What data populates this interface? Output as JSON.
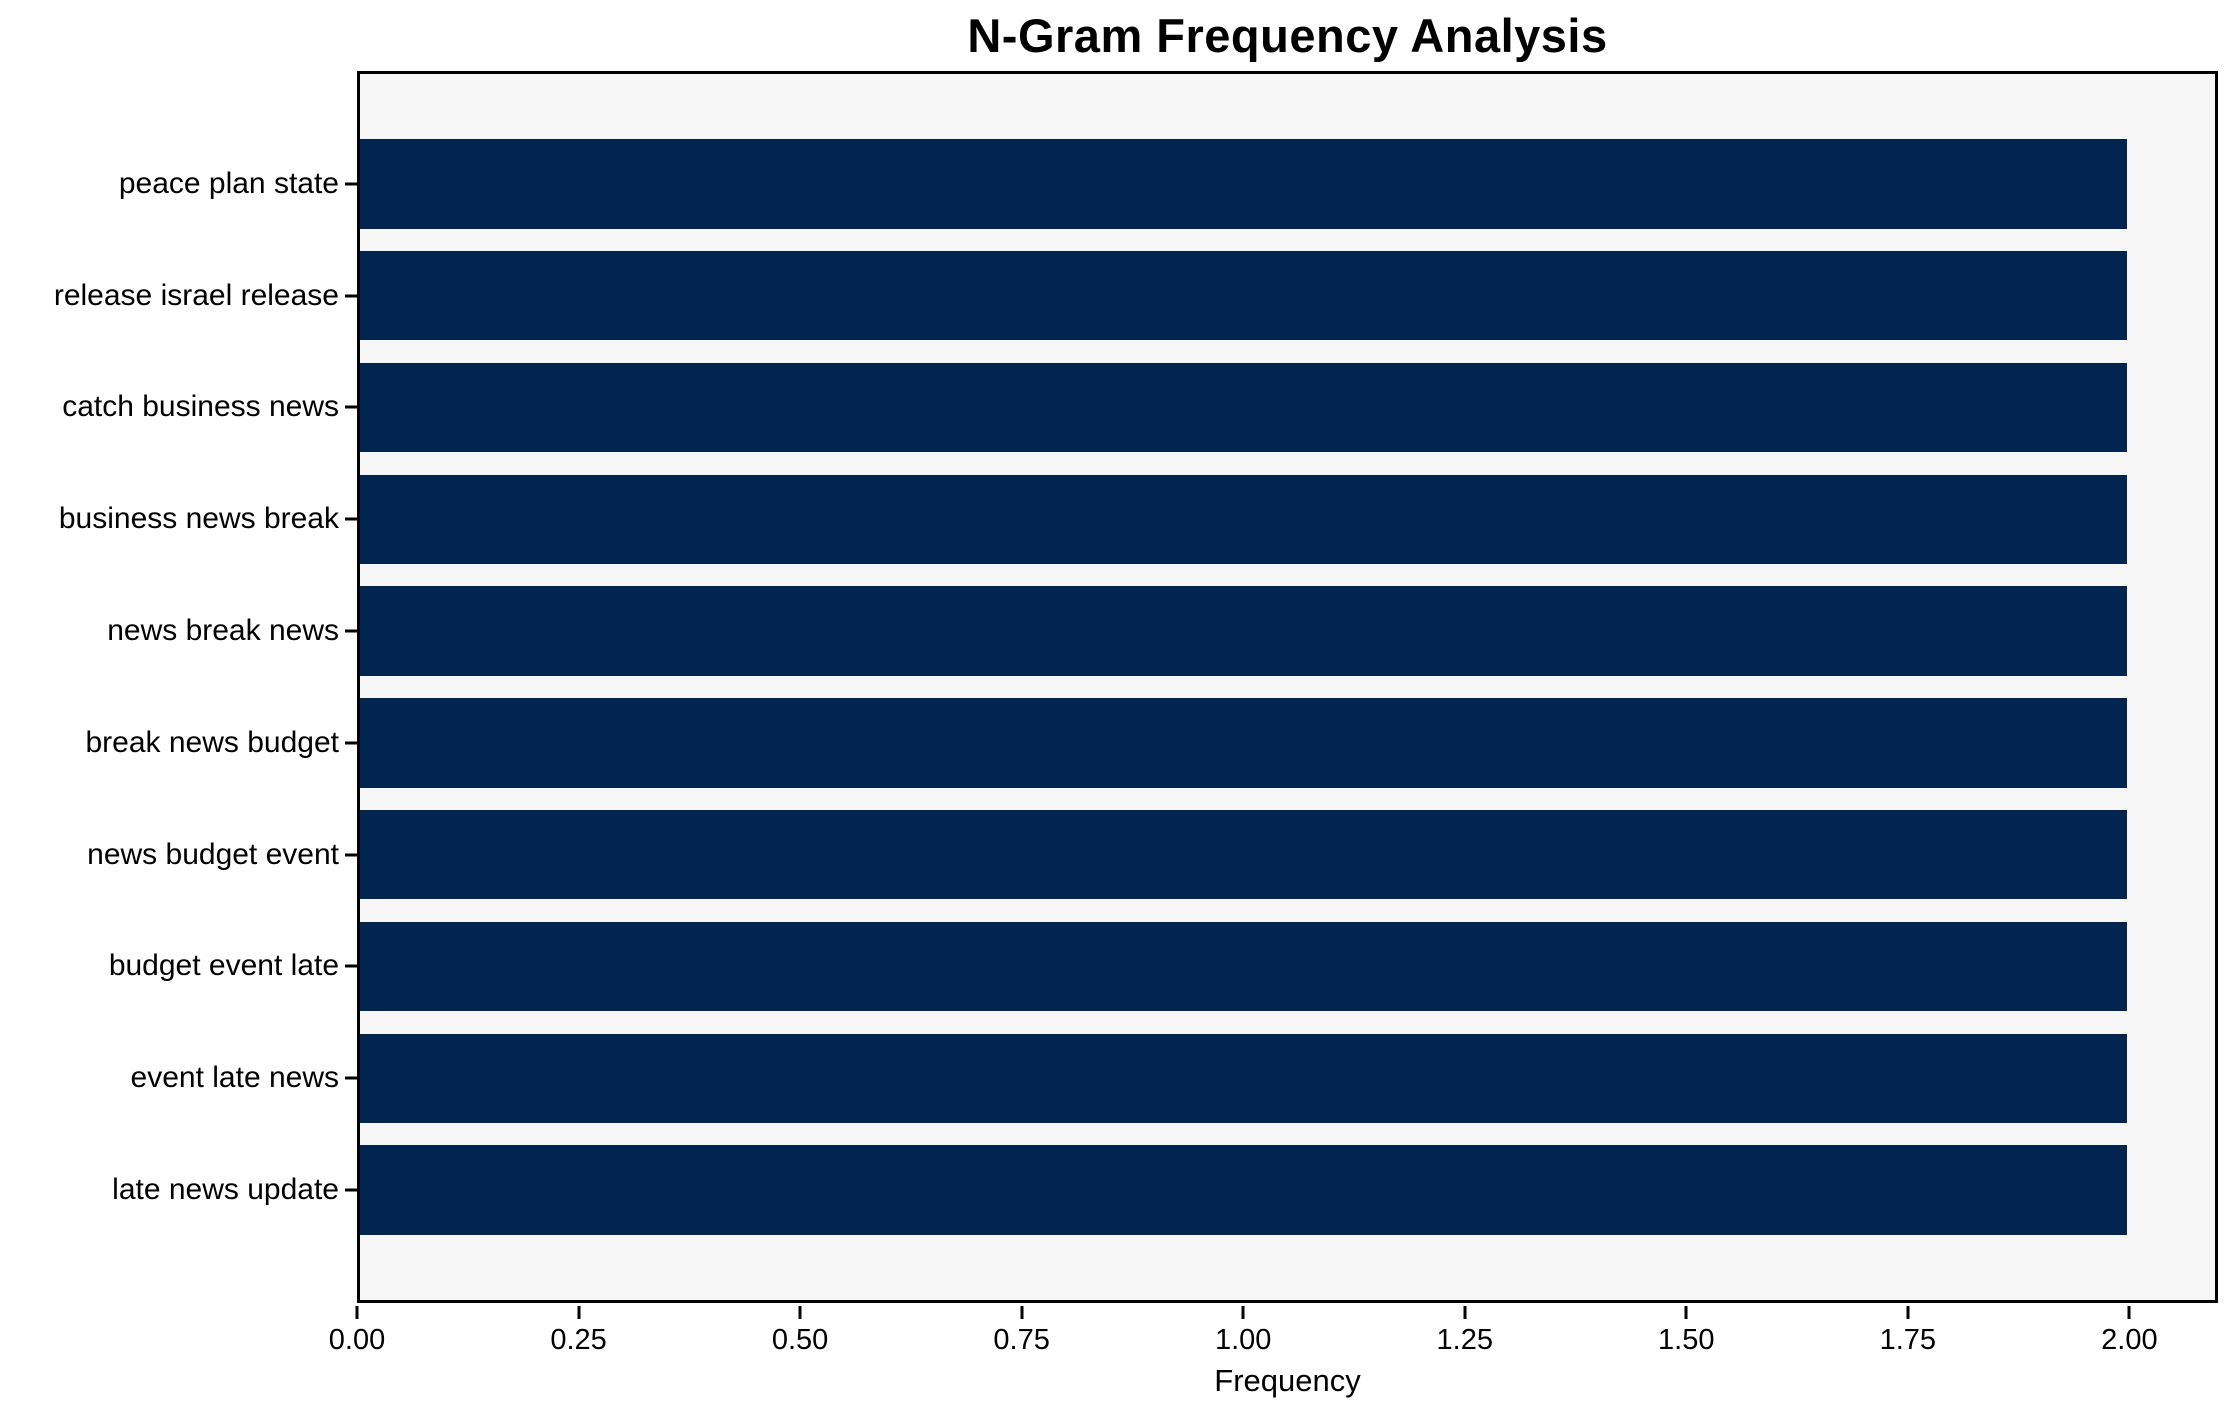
{
  "chart_data": {
    "type": "bar",
    "orientation": "horizontal",
    "title": "N-Gram Frequency Analysis",
    "xlabel": "Frequency",
    "ylabel": "",
    "categories": [
      "peace plan state",
      "release israel release",
      "catch business news",
      "business news break",
      "news break news",
      "break news budget",
      "news budget event",
      "budget event late",
      "event late news",
      "late news update"
    ],
    "values": [
      2,
      2,
      2,
      2,
      2,
      2,
      2,
      2,
      2,
      2
    ],
    "xlim": [
      0,
      2.1
    ],
    "x_ticks": [
      {
        "value": 0.0,
        "label": "0.00"
      },
      {
        "value": 0.25,
        "label": "0.25"
      },
      {
        "value": 0.5,
        "label": "0.50"
      },
      {
        "value": 0.75,
        "label": "0.75"
      },
      {
        "value": 1.0,
        "label": "1.00"
      },
      {
        "value": 1.25,
        "label": "1.25"
      },
      {
        "value": 1.5,
        "label": "1.50"
      },
      {
        "value": 1.75,
        "label": "1.75"
      },
      {
        "value": 2.0,
        "label": "2.00"
      }
    ],
    "grid": false,
    "legend": null,
    "colors": {
      "bar": "#02254f",
      "plot_background": "#f6f6f6",
      "figure_background": "#ffffff",
      "spine": "#000000",
      "text": "#000000"
    }
  }
}
